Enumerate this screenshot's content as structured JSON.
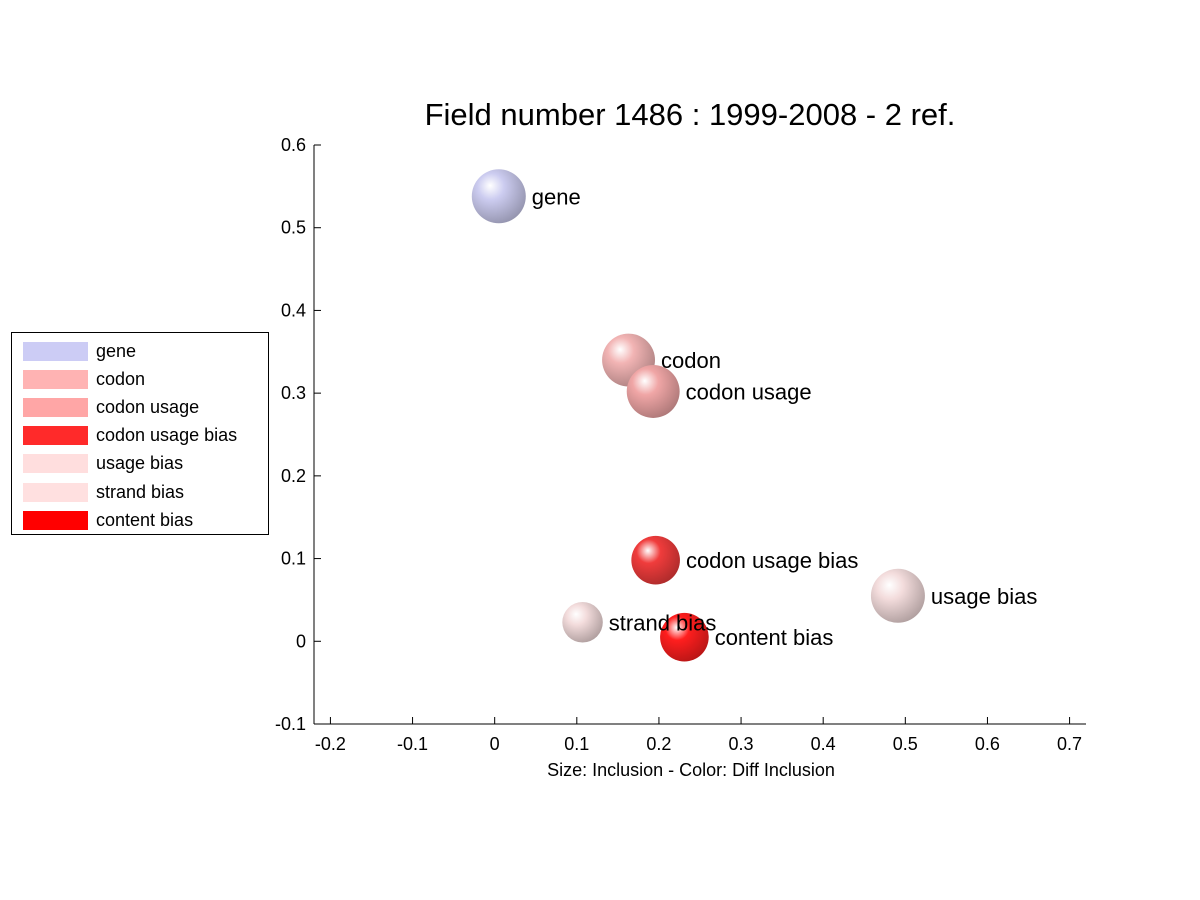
{
  "chart_data": {
    "type": "scatter",
    "title": "Field number 1486 : 1999-2008  - 2 ref.",
    "xlabel": "Size: Inclusion - Color: Diff Inclusion",
    "ylabel": "",
    "xlim": [
      -0.22,
      0.72
    ],
    "ylim": [
      -0.1,
      0.6
    ],
    "xticks": [
      -0.2,
      -0.1,
      0,
      0.1,
      0.2,
      0.3,
      0.4,
      0.5,
      0.6,
      0.7
    ],
    "xtick_labels": [
      "-0.2",
      "-0.1",
      "0",
      "0.1",
      "0.2",
      "0.3",
      "0.4",
      "0.5",
      "0.6",
      "0.7"
    ],
    "yticks": [
      -0.1,
      0,
      0.1,
      0.2,
      0.3,
      0.4,
      0.5,
      0.6
    ],
    "ytick_labels": [
      "-0.1",
      "0",
      "0.1",
      "0.2",
      "0.3",
      "0.4",
      "0.5",
      "0.6"
    ],
    "grid": false,
    "legend_position": "left",
    "points": [
      {
        "label": "gene",
        "x": 0.005,
        "y": 0.538,
        "size": 1.0,
        "color": "#ccccf0"
      },
      {
        "label": "codon",
        "x": 0.163,
        "y": 0.34,
        "size": 0.98,
        "color": "#f2b4b4"
      },
      {
        "label": "codon usage",
        "x": 0.193,
        "y": 0.302,
        "size": 0.98,
        "color": "#f0a6a6"
      },
      {
        "label": "codon usage bias",
        "x": 0.196,
        "y": 0.098,
        "size": 0.9,
        "color": "#f03c3c"
      },
      {
        "label": "usage bias",
        "x": 0.491,
        "y": 0.055,
        "size": 1.0,
        "color": "#f3dcdc"
      },
      {
        "label": "strand bias",
        "x": 0.107,
        "y": 0.023,
        "size": 0.75,
        "color": "#f3dcdc"
      },
      {
        "label": "content bias",
        "x": 0.231,
        "y": 0.005,
        "size": 0.9,
        "color": "#ff1e1e"
      }
    ]
  },
  "legend": {
    "items": [
      {
        "label": "gene",
        "color": "#ccccf5"
      },
      {
        "label": "codon",
        "color": "#ffb3b3"
      },
      {
        "label": "codon usage",
        "color": "#ffa6a6"
      },
      {
        "label": "codon usage bias",
        "color": "#ff2a2a"
      },
      {
        "label": "usage bias",
        "color": "#ffdede"
      },
      {
        "label": "strand bias",
        "color": "#ffe0e0"
      },
      {
        "label": "content bias",
        "color": "#ff0000"
      }
    ]
  }
}
